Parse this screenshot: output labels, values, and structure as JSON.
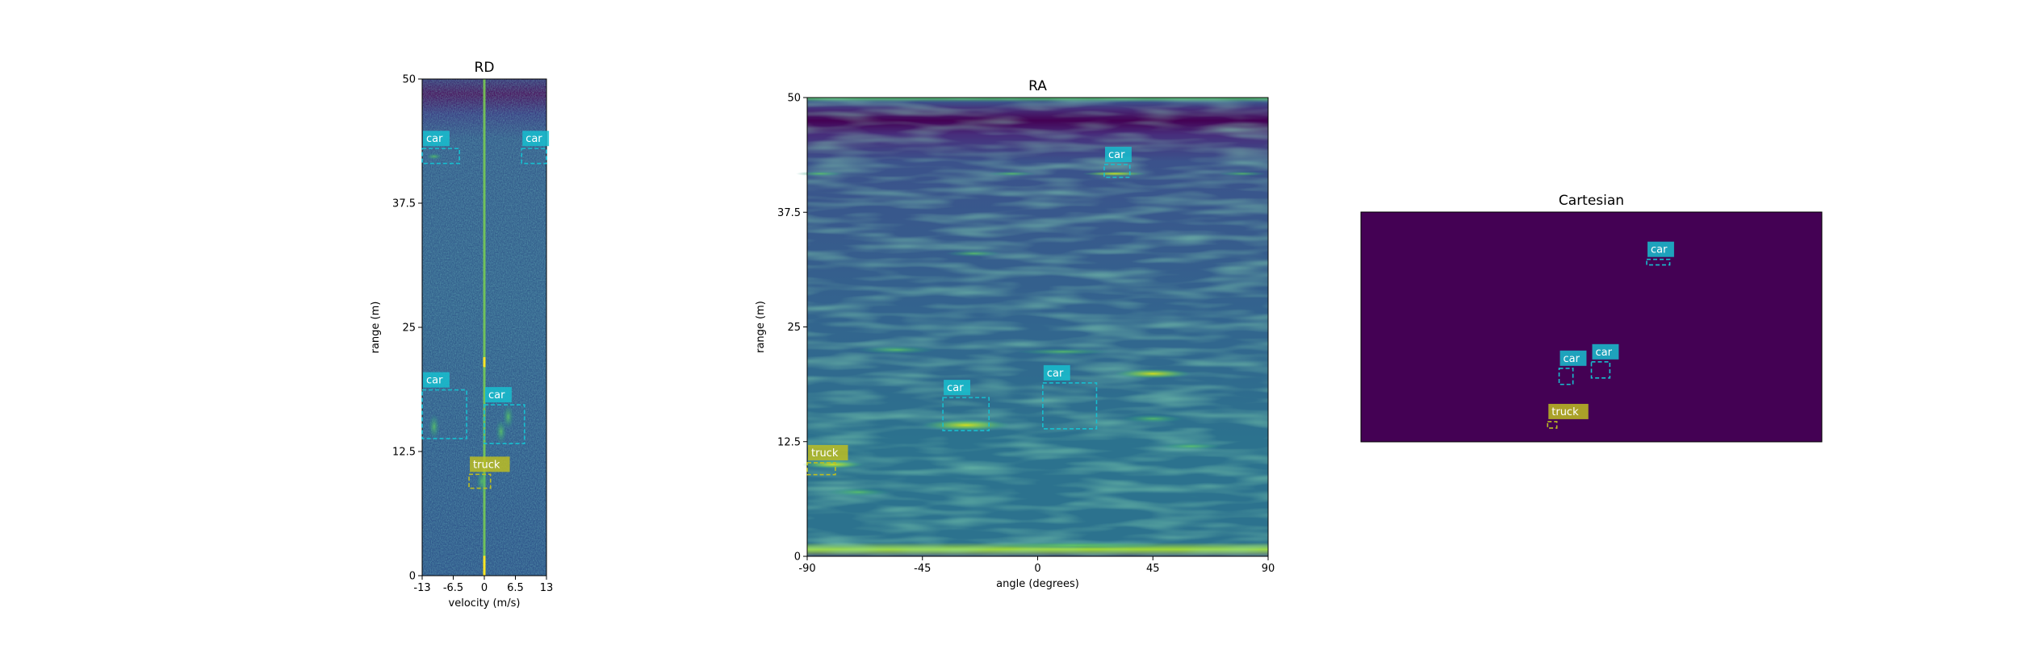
{
  "colors": {
    "background": "#440154",
    "car": "#17becf",
    "truck": "#bcbd22",
    "viridis_low": "#440154",
    "viridis_mid": "#3b528b",
    "viridis_green": "#21918c",
    "viridis_high": "#fde725"
  },
  "chart_data": [
    {
      "type": "heatmap",
      "title": "RD",
      "xlabel": "velocity (m/s)",
      "ylabel": "range (m)",
      "xlim": [
        -13,
        13
      ],
      "ylim": [
        0,
        50
      ],
      "xticks": [
        "-13",
        "-6.5",
        "0",
        "6.5",
        "13"
      ],
      "yticks": [
        "0",
        "12.5",
        "25",
        "37.5",
        "50"
      ],
      "grid": false,
      "detections": [
        {
          "label": "car",
          "x": [
            -13,
            -5.2
          ],
          "y": [
            41.5,
            43
          ]
        },
        {
          "label": "car",
          "x": [
            7.8,
            13
          ],
          "y": [
            41.5,
            43
          ]
        },
        {
          "label": "car",
          "x": [
            -13,
            -3.7
          ],
          "y": [
            13.8,
            18.7
          ]
        },
        {
          "label": "car",
          "x": [
            0,
            8.4
          ],
          "y": [
            13.3,
            17.2
          ]
        },
        {
          "label": "truck",
          "x": [
            -3.2,
            1.3
          ],
          "y": [
            8.8,
            10.2
          ]
        }
      ]
    },
    {
      "type": "heatmap",
      "title": "RA",
      "xlabel": "angle (degrees)",
      "ylabel": "range (m)",
      "xlim": [
        -90,
        90
      ],
      "ylim": [
        0,
        50
      ],
      "xticks": [
        "-90",
        "-45",
        "0",
        "45",
        "90"
      ],
      "yticks": [
        "0",
        "12.5",
        "25",
        "37.5",
        "50"
      ],
      "grid": false,
      "detections": [
        {
          "label": "car",
          "x": [
            26,
            36
          ],
          "y": [
            41.3,
            42.7
          ]
        },
        {
          "label": "car",
          "x": [
            -37,
            -19
          ],
          "y": [
            13.7,
            17.3
          ]
        },
        {
          "label": "car",
          "x": [
            2,
            23
          ],
          "y": [
            13.9,
            18.9
          ]
        },
        {
          "label": "truck",
          "x": [
            -90,
            -79
          ],
          "y": [
            8.9,
            10.2
          ]
        }
      ]
    },
    {
      "type": "heatmap",
      "title": "Cartesian",
      "xlabel": "",
      "ylabel": "",
      "xlim": [
        0,
        100
      ],
      "ylim": [
        0,
        50
      ],
      "xticks": [],
      "yticks": [],
      "grid": false,
      "detections": [
        {
          "label": "car",
          "x": [
            62,
            67
          ],
          "y": [
            38.5,
            39.7
          ]
        },
        {
          "label": "car",
          "x": [
            43,
            46
          ],
          "y": [
            12.5,
            16
          ]
        },
        {
          "label": "car",
          "x": [
            50,
            54
          ],
          "y": [
            13.9,
            17.4
          ]
        },
        {
          "label": "truck",
          "x": [
            40.5,
            42.5
          ],
          "y": [
            3,
            4.4
          ]
        }
      ]
    }
  ]
}
